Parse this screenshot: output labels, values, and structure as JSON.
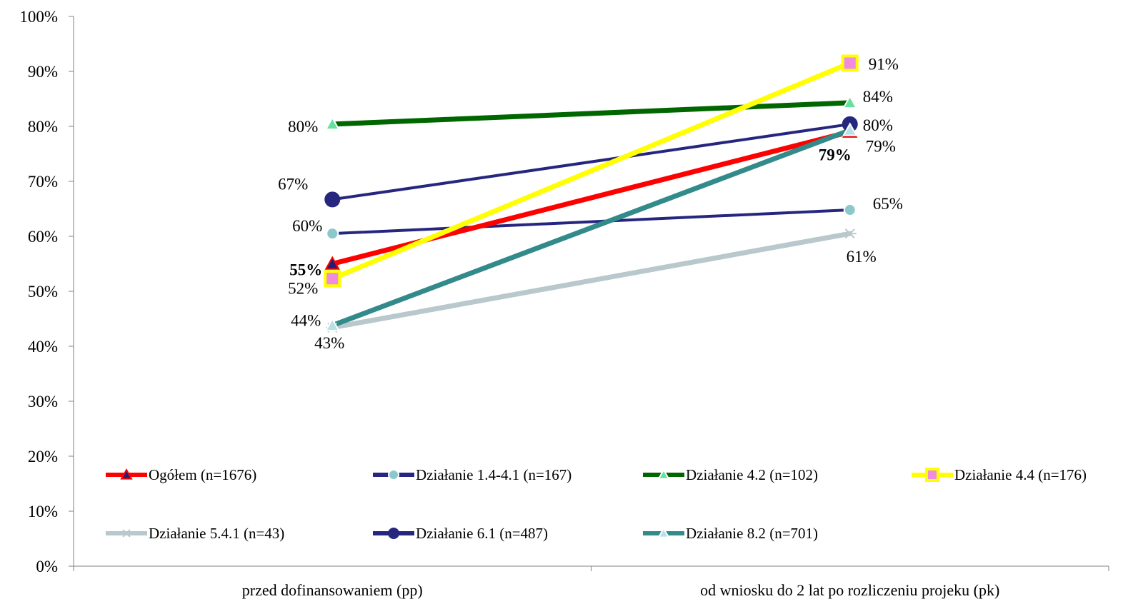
{
  "chart_data": {
    "type": "line",
    "categories": [
      "przed dofinansowaniem (pp)",
      "od wniosku do 2 lat po rozliczeniu projeku (pk)"
    ],
    "ylim": [
      0,
      100
    ],
    "yticks": [
      "0%",
      "10%",
      "20%",
      "30%",
      "40%",
      "50%",
      "60%",
      "70%",
      "80%",
      "90%",
      "100%"
    ],
    "grid": false,
    "legend_position": "bottom-inside",
    "series": [
      {
        "name": "Ogółem (n=1676)",
        "values": [
          55,
          79
        ],
        "labels": [
          "55%",
          "79%"
        ],
        "color": "#ff0000",
        "marker": "triangle",
        "marker_fill": "#1f1f7a",
        "bold_labels": true
      },
      {
        "name": "Działanie 1.4-4.1 (n=167)",
        "values": [
          60.5,
          64.8
        ],
        "labels": [
          "60%",
          "65%"
        ],
        "color": "#262680",
        "marker": "circle",
        "marker_fill": "#8cc7cc"
      },
      {
        "name": "Działanie 4.2 (n=102)",
        "values": [
          80.4,
          84.3
        ],
        "labels": [
          "80%",
          "84%"
        ],
        "color": "#006600",
        "marker": "triangle",
        "marker_fill": "#66e0a0"
      },
      {
        "name": "Działanie 4.4 (n=176)",
        "values": [
          52.3,
          91.5
        ],
        "labels": [
          "52%",
          "91%"
        ],
        "color": "#ffff00",
        "marker": "square",
        "marker_fill": "#f08ce0"
      },
      {
        "name": "Działanie 5.4.1 (n=43)",
        "values": [
          43.4,
          60.5
        ],
        "labels": [
          "43%",
          "61%"
        ],
        "color": "#b8c8cc",
        "marker": "star",
        "marker_fill": "#b8c8cc"
      },
      {
        "name": "Działanie 6.1 (n=487)",
        "values": [
          66.7,
          80.4
        ],
        "labels": [
          "67%",
          "80%"
        ],
        "color": "#26267f",
        "marker": "circle",
        "marker_fill": "#26267f"
      },
      {
        "name": "Działanie 8.2 (n=701)",
        "values": [
          43.8,
          79.3
        ],
        "labels": [
          "44%",
          "79%"
        ],
        "color": "#338a8a",
        "marker": "triangle",
        "marker_fill": "#b8e0e6"
      }
    ]
  }
}
